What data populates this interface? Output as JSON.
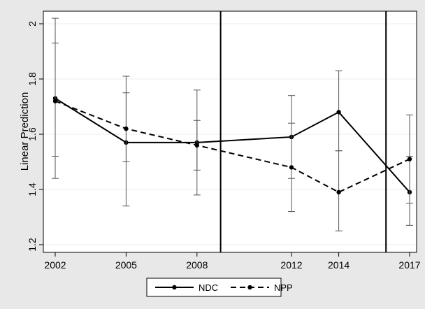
{
  "chart_data": {
    "type": "line",
    "title": "",
    "xlabel": "",
    "ylabel": "Linear Prediction",
    "xlim": [
      2002,
      2017
    ],
    "ylim": [
      1.2,
      2.0
    ],
    "x_ticks": [
      2002,
      2005,
      2008,
      2012,
      2014,
      2017
    ],
    "y_ticks": [
      1.2,
      1.4,
      1.6,
      1.8,
      2.0
    ],
    "y_tick_labels": [
      "1.2",
      "1.4",
      "1.6",
      "1.8",
      "2"
    ],
    "grid": "horizontal",
    "reference_lines_x": [
      2009,
      2016
    ],
    "legend": {
      "placement": "bottom"
    },
    "series": [
      {
        "name": "NDC",
        "style": "solid",
        "color": "#000000",
        "x": [
          2002,
          2005,
          2008,
          2012,
          2014,
          2017
        ],
        "values": [
          1.73,
          1.57,
          1.57,
          1.59,
          1.68,
          1.39
        ],
        "ci_low": [
          1.44,
          1.34,
          1.38,
          1.44,
          1.54,
          1.27
        ],
        "ci_high": [
          2.02,
          1.81,
          1.76,
          1.74,
          1.83,
          1.52
        ]
      },
      {
        "name": "NPP",
        "style": "dashed",
        "color": "#000000",
        "x": [
          2002,
          2005,
          2008,
          2012,
          2014,
          2017
        ],
        "values": [
          1.72,
          1.62,
          1.56,
          1.48,
          1.39,
          1.51
        ],
        "ci_low": [
          1.52,
          1.5,
          1.47,
          1.32,
          1.25,
          1.35
        ],
        "ci_high": [
          1.93,
          1.75,
          1.65,
          1.64,
          1.54,
          1.67
        ]
      }
    ]
  }
}
